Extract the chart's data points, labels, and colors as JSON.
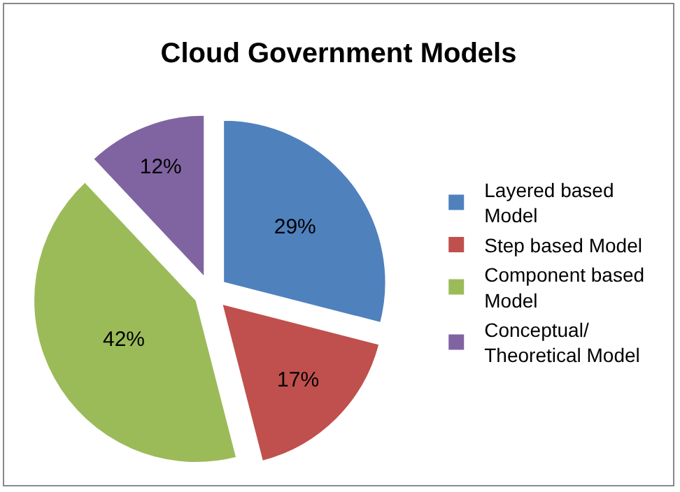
{
  "chart_data": {
    "type": "pie",
    "title": "Cloud Government Models",
    "categories": [
      "Layered based Model",
      "Step based Model",
      "Component based Model",
      "Conceptual/Theoretical Model"
    ],
    "values": [
      29,
      17,
      42,
      12
    ],
    "colors": [
      "#4f81bd",
      "#c0504d",
      "#9bbb59",
      "#8064a2"
    ],
    "value_labels": [
      "29%",
      "17%",
      "42%",
      "12%"
    ],
    "legend": "right"
  }
}
